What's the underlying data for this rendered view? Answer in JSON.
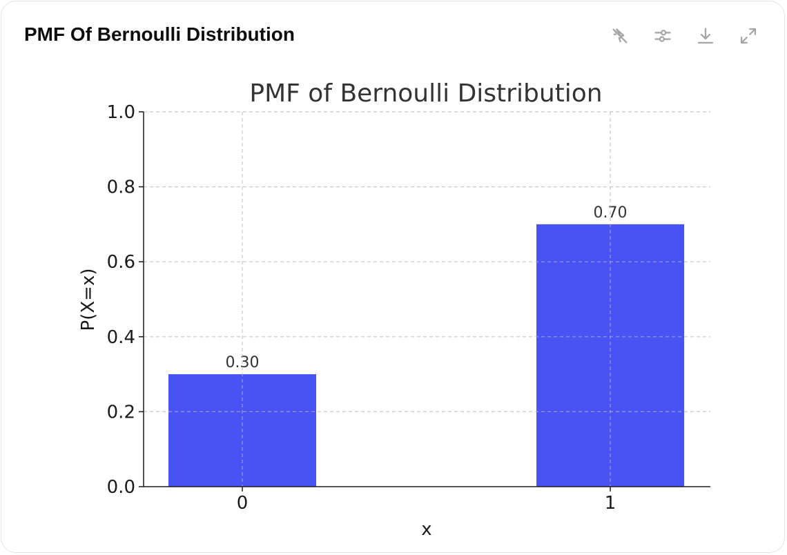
{
  "card": {
    "title": "PMF Of Bernoulli Distribution"
  },
  "toolbar": {
    "icons": [
      "interactive-off-icon",
      "settings-sliders-icon",
      "download-icon",
      "expand-icon"
    ]
  },
  "colors": {
    "bar": "#4953f4",
    "grid": "#cccccc",
    "axis": "#1a1a1a",
    "icon": "#a6a6a6"
  },
  "chart_data": {
    "type": "bar",
    "title": "PMF of Bernoulli Distribution",
    "xlabel": "x",
    "ylabel": "P(X=x)",
    "categories": [
      "0",
      "1"
    ],
    "values": [
      0.3,
      0.7
    ],
    "data_labels": [
      "0.30",
      "0.70"
    ],
    "ylim": [
      0,
      1.0
    ],
    "yticks": [
      "0.0",
      "0.2",
      "0.4",
      "0.6",
      "0.8",
      "1.0"
    ],
    "grid": true,
    "grid_style": "dashed",
    "legend": "none"
  }
}
